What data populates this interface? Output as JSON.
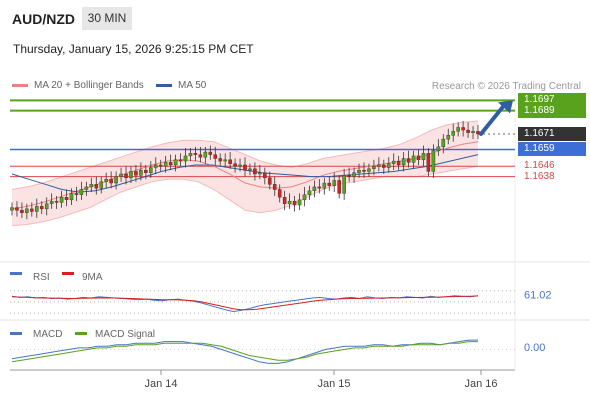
{
  "header": {
    "symbol": "AUD/NZD",
    "timeframe": "30 MIN",
    "datetime": "Thursday, January 15, 2026 9:25:15 PM CET"
  },
  "legend": {
    "ma20": {
      "label": "MA 20 + Bollinger Bands",
      "color": "#f08080"
    },
    "ma50": {
      "label": "MA 50",
      "color": "#2f5fa0"
    }
  },
  "credit": "Research © 2026 Trading Central",
  "colors": {
    "green_level": "#58a21e",
    "blue_level": "#3b6fd6",
    "red_level": "#d44",
    "current": "#333333",
    "arrow": "#2f5fa0"
  },
  "chart_data": [
    {
      "type": "candlestick",
      "name": "price",
      "x_ticks": [
        "Jan 14",
        "Jan 15",
        "Jan 16"
      ],
      "ylim": [
        1.1575,
        1.1705
      ],
      "levels": [
        {
          "value": 1.1697,
          "label": "1.1697",
          "kind": "resistance-green"
        },
        {
          "value": 1.1689,
          "label": "1.1689",
          "kind": "resistance-green"
        },
        {
          "value": 1.1671,
          "label": "1.1671",
          "kind": "current"
        },
        {
          "value": 1.1659,
          "label": "1.1659",
          "kind": "pivot-blue"
        },
        {
          "value": 1.1646,
          "label": "1.1646",
          "kind": "support-red"
        },
        {
          "value": 1.1638,
          "label": "1.1638",
          "kind": "support-red"
        }
      ],
      "closes": [
        1.1614,
        1.1612,
        1.161,
        1.1613,
        1.1611,
        1.1615,
        1.1613,
        1.1617,
        1.1619,
        1.1618,
        1.1622,
        1.162,
        1.1625,
        1.1624,
        1.1628,
        1.163,
        1.1632,
        1.1629,
        1.1634,
        1.1636,
        1.1633,
        1.1638,
        1.164,
        1.1637,
        1.1642,
        1.1639,
        1.1643,
        1.1641,
        1.1645,
        1.1647,
        1.1646,
        1.1649,
        1.1647,
        1.1651,
        1.165,
        1.1654,
        1.1656,
        1.1655,
        1.1653,
        1.1657,
        1.1655,
        1.1652,
        1.165,
        1.1651,
        1.1648,
        1.1646,
        1.1647,
        1.1643,
        1.1644,
        1.164,
        1.1641,
        1.1637,
        1.1632,
        1.1628,
        1.1622,
        1.1617,
        1.1619,
        1.1616,
        1.162,
        1.1624,
        1.1627,
        1.163,
        1.1629,
        1.1633,
        1.1631,
        1.1635,
        1.1625,
        1.1639,
        1.1638,
        1.1641,
        1.1643,
        1.1642,
        1.1644,
        1.1646,
        1.1647,
        1.1645,
        1.1648,
        1.165,
        1.1647,
        1.1652,
        1.1649,
        1.1654,
        1.1651,
        1.1656,
        1.1642,
        1.1658,
        1.1661,
        1.1667,
        1.167,
        1.1673,
        1.1676,
        1.1674,
        1.1672,
        1.1673,
        1.1671
      ],
      "bb_upper": [
        1.1628,
        1.163,
        1.1633,
        1.1637,
        1.1641,
        1.1645,
        1.1649,
        1.1653,
        1.1657,
        1.1661,
        1.1664,
        1.1666,
        1.1666,
        1.1665,
        1.166,
        1.1655,
        1.165,
        1.1647,
        1.1645,
        1.1648,
        1.1652,
        1.1654,
        1.1656,
        1.1658,
        1.166,
        1.1663,
        1.1668,
        1.1674,
        1.1678,
        1.168,
        1.1681
      ],
      "bb_lower": [
        1.16,
        1.1601,
        1.1603,
        1.1606,
        1.161,
        1.1614,
        1.162,
        1.1626,
        1.163,
        1.1634,
        1.1636,
        1.1636,
        1.1634,
        1.1628,
        1.162,
        1.1612,
        1.161,
        1.1612,
        1.1616,
        1.1622,
        1.1628,
        1.1632,
        1.1634,
        1.1636,
        1.1638,
        1.1638,
        1.1638,
        1.164,
        1.1642,
        1.1644,
        1.1646
      ],
      "ma20": [
        1.1613,
        1.1615,
        1.1618,
        1.1622,
        1.1626,
        1.163,
        1.1634,
        1.1639,
        1.1643,
        1.1647,
        1.165,
        1.1651,
        1.165,
        1.1646,
        1.164,
        1.1633,
        1.163,
        1.1629,
        1.163,
        1.1634,
        1.1639,
        1.1642,
        1.1644,
        1.1646,
        1.1648,
        1.165,
        1.1652,
        1.1656,
        1.166,
        1.1663,
        1.1665
      ],
      "ma50": [
        1.164,
        1.1636,
        1.1632,
        1.1628,
        1.1626,
        1.1627,
        1.163,
        1.1634,
        1.1638,
        1.1642,
        1.1645,
        1.1647,
        1.1647,
        1.1645,
        1.1643,
        1.1641,
        1.164,
        1.1639,
        1.1638,
        1.1638,
        1.1639,
        1.164,
        1.1641,
        1.1642,
        1.1644,
        1.1646,
        1.1649,
        1.1652,
        1.1655
      ]
    },
    {
      "type": "line",
      "name": "RSI panel",
      "legend": [
        {
          "label": "RSI",
          "color": "#4a74c9"
        },
        {
          "label": "9MA",
          "color": "#d62020"
        }
      ],
      "ylim": [
        25,
        80
      ],
      "levels": [
        70,
        50,
        30
      ],
      "value_label": "61.02",
      "rsi": [
        60,
        58,
        59,
        57,
        58,
        56,
        57,
        55,
        56,
        58,
        57,
        59,
        58,
        57,
        56,
        55,
        54,
        55,
        53,
        52,
        54,
        55,
        53,
        51,
        48,
        44,
        40,
        36,
        33,
        35,
        38,
        42,
        45,
        47,
        49,
        51,
        53,
        55,
        57,
        58,
        56,
        55,
        57,
        58,
        56,
        59,
        57,
        56,
        58,
        57,
        59,
        58,
        57,
        60,
        58,
        59,
        61,
        60,
        59,
        61
      ],
      "rsi_ma": [
        59,
        58.5,
        58,
        57.5,
        57,
        56.8,
        56.5,
        56.3,
        56,
        56.4,
        56.8,
        57,
        57.2,
        57,
        56.5,
        56,
        55.5,
        55,
        54.5,
        54,
        53.8,
        53.5,
        53,
        52,
        50,
        47,
        44,
        41,
        38,
        36,
        36,
        37,
        39,
        41,
        43,
        45,
        47,
        49,
        51,
        53,
        54,
        55,
        55.5,
        56,
        56.2,
        56.5,
        56.8,
        57,
        57.2,
        57.4,
        57.6,
        57.8,
        58,
        58.3,
        58.6,
        59,
        59.4,
        59.8,
        60.2,
        60.6
      ]
    },
    {
      "type": "line",
      "name": "MACD panel",
      "legend": [
        {
          "label": "MACD",
          "color": "#4a74c9"
        },
        {
          "label": "MACD Signal",
          "color": "#58a21e"
        }
      ],
      "ylim": [
        -0.0012,
        0.0008
      ],
      "value_label": "0.00",
      "macd": [
        -0.0006,
        -0.0005,
        -0.0004,
        -0.0003,
        -0.0002,
        -0.0001,
        0.0,
        0.0001,
        0.0001,
        0.0002,
        0.0002,
        0.0003,
        0.0003,
        0.0004,
        0.0004,
        0.0004,
        0.0005,
        0.0005,
        0.0005,
        0.0004,
        0.0003,
        0.0002,
        0.0,
        -0.0002,
        -0.0004,
        -0.0006,
        -0.0008,
        -0.0009,
        -0.0009,
        -0.0008,
        -0.0006,
        -0.0004,
        -0.0002,
        0.0,
        0.0001,
        0.0002,
        0.0002,
        0.0002,
        0.0003,
        0.0003,
        0.0002,
        0.0003,
        0.0003,
        0.0004,
        0.0004,
        0.0003,
        0.0004,
        0.0005,
        0.0006,
        0.0006
      ],
      "signal": [
        -0.0008,
        -0.0007,
        -0.0006,
        -0.0005,
        -0.0004,
        -0.0003,
        -0.0002,
        -0.0001,
        0.0,
        0.0001,
        0.0001,
        0.0002,
        0.0002,
        0.0003,
        0.0003,
        0.0003,
        0.0004,
        0.0004,
        0.0004,
        0.0004,
        0.0004,
        0.0003,
        0.0002,
        0.0,
        -0.0002,
        -0.0004,
        -0.0005,
        -0.0006,
        -0.0007,
        -0.0007,
        -0.0006,
        -0.0005,
        -0.0003,
        -0.0002,
        -0.0001,
        0.0,
        0.0001,
        0.0001,
        0.0002,
        0.0002,
        0.0002,
        0.0002,
        0.0003,
        0.0003,
        0.0003,
        0.0003,
        0.0004,
        0.0004,
        0.0005,
        0.0005
      ]
    }
  ]
}
